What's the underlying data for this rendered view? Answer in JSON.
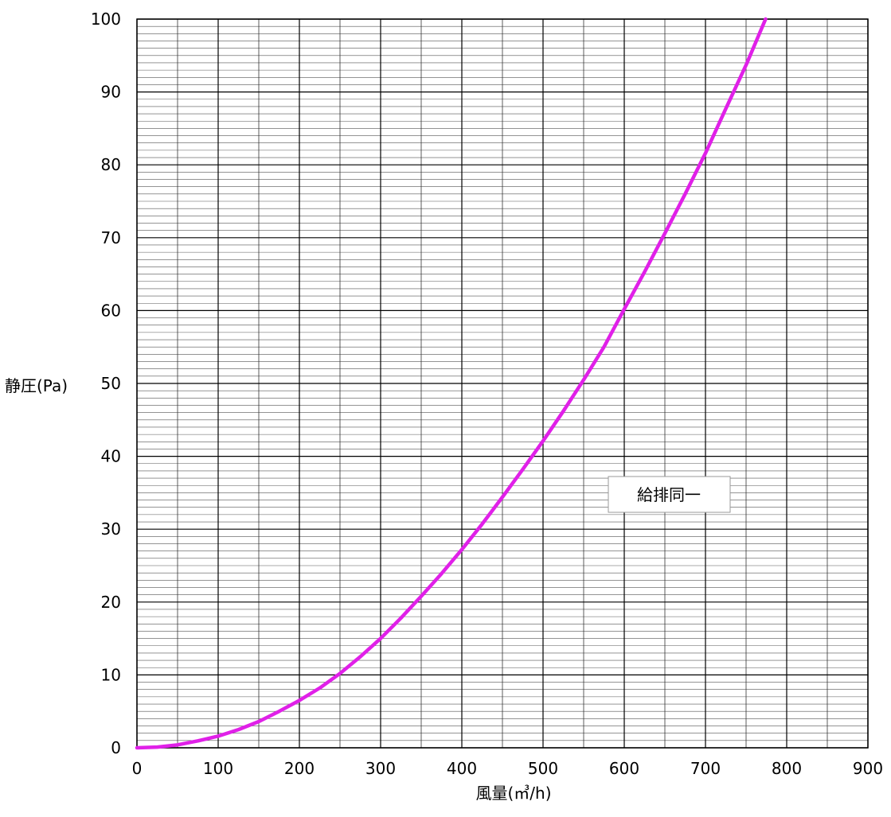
{
  "chart_data": {
    "type": "line",
    "title": "",
    "xlabel": "風量(㎥/h)",
    "ylabel": "静圧(Pa)",
    "xlim": [
      0,
      900
    ],
    "ylim": [
      0,
      100
    ],
    "x_ticks": [
      0,
      100,
      200,
      300,
      400,
      500,
      600,
      700,
      800,
      900
    ],
    "y_ticks": [
      0,
      10,
      20,
      30,
      40,
      50,
      60,
      70,
      80,
      90,
      100
    ],
    "x_minor_step": 50,
    "y_minor_step": 1,
    "grid": true,
    "legend": "none",
    "annotation": "給排同一",
    "series": [
      {
        "color": "#e020e8",
        "x": [
          0,
          25,
          50,
          75,
          100,
          125,
          150,
          175,
          200,
          225,
          250,
          275,
          300,
          325,
          350,
          375,
          400,
          425,
          450,
          475,
          500,
          525,
          550,
          575,
          600,
          625,
          650,
          675,
          700,
          725,
          750,
          774
        ],
        "y": [
          0,
          0.1,
          0.4,
          0.95,
          1.6,
          2.5,
          3.6,
          5.0,
          6.5,
          8.2,
          10.2,
          12.5,
          15.0,
          17.8,
          20.8,
          23.9,
          27.2,
          30.7,
          34.4,
          38.2,
          42.1,
          46.2,
          50.5,
          55.0,
          60.2,
          65.3,
          70.6,
          76.0,
          81.6,
          87.7,
          93.7,
          100
        ]
      }
    ]
  }
}
